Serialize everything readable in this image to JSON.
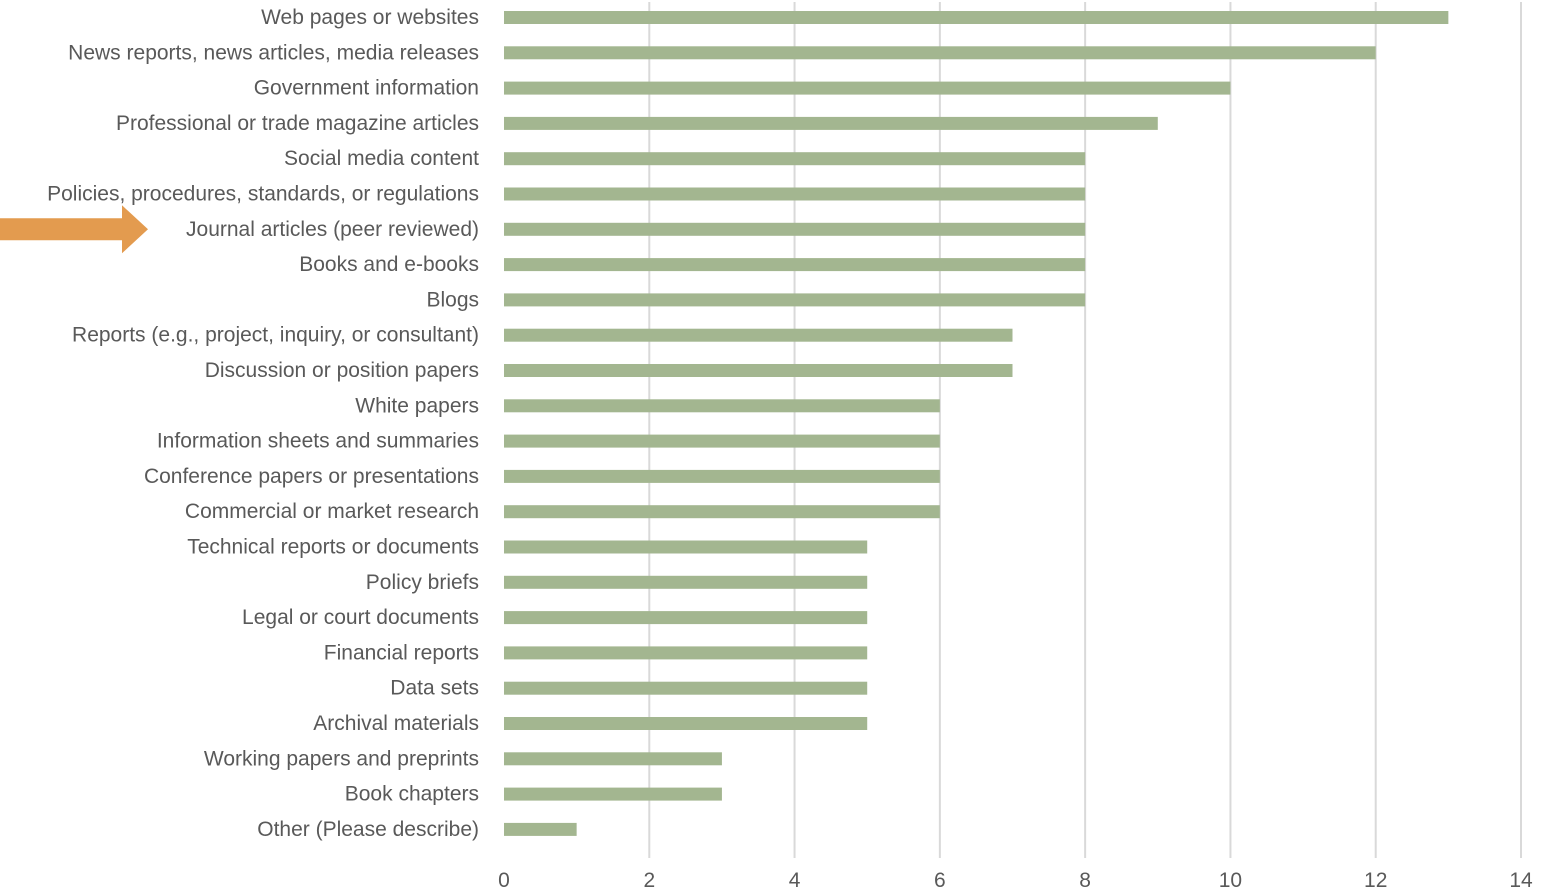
{
  "chart_data": {
    "type": "bar",
    "orientation": "horizontal",
    "title": "",
    "xlabel": "",
    "ylabel": "",
    "xlim": [
      0,
      14
    ],
    "x_ticks": [
      0,
      2,
      4,
      6,
      8,
      10,
      12,
      14
    ],
    "grid": true,
    "legend": "none",
    "categories": [
      "Web pages or websites",
      "News reports, news articles, media releases",
      "Government information",
      "Professional or trade magazine articles",
      "Social media content",
      "Policies, procedures, standards, or regulations",
      "Journal articles (peer reviewed)",
      "Books and e-books",
      "Blogs",
      "Reports (e.g., project, inquiry, or consultant)",
      "Discussion or position papers",
      "White papers",
      "Information sheets and summaries",
      "Conference papers or presentations",
      "Commercial or market research",
      "Technical reports or documents",
      "Policy briefs",
      "Legal or court documents",
      "Financial reports",
      "Data sets",
      "Archival materials",
      "Working papers and preprints",
      "Book chapters",
      "Other (Please describe)"
    ],
    "values": [
      13,
      12,
      10,
      9,
      8,
      8,
      8,
      8,
      8,
      7,
      7,
      6,
      6,
      6,
      6,
      5,
      5,
      5,
      5,
      5,
      5,
      3,
      3,
      1
    ],
    "bar_color": "#a3b690",
    "highlight": {
      "category": "Journal articles (peer reviewed)",
      "marker": "arrow-icon",
      "color": "#e39b4f"
    }
  }
}
